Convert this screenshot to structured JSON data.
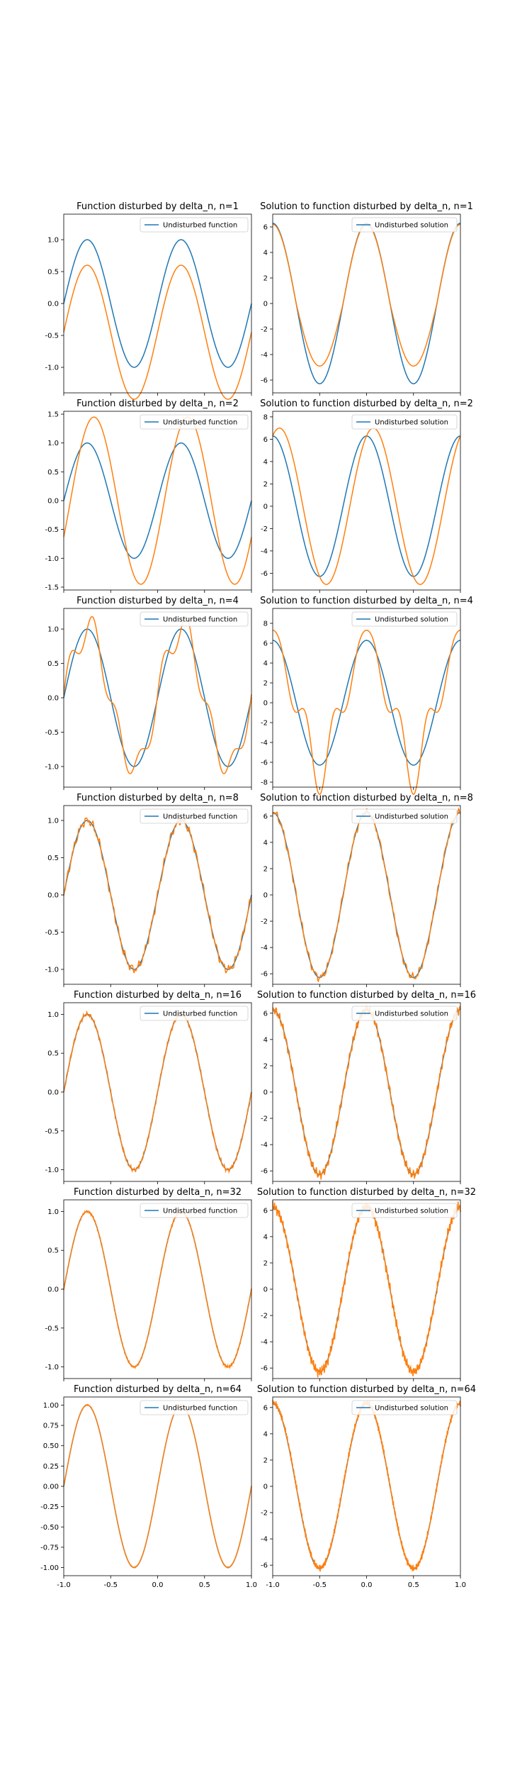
{
  "chart_data": [
    {
      "type": "line",
      "title": "Function disturbed by delta_n, n=1",
      "legend": [
        "Undisturbed function"
      ],
      "legend_loc": "upper-right",
      "xlim": [
        -1.0,
        1.0
      ],
      "ylim": [
        -1.4,
        1.4
      ],
      "yticks": [
        "1.0",
        "0.5",
        "0.0",
        "-0.5",
        "-1.0"
      ],
      "xticks": [],
      "curve": "f",
      "n": 1
    },
    {
      "type": "line",
      "title": "Solution to function disturbed by delta_n, n=1",
      "legend": [
        "Undisturbed solution"
      ],
      "legend_loc": "upper-right",
      "xlim": [
        -1.0,
        1.0
      ],
      "ylim": [
        -7.0,
        7.0
      ],
      "yticks": [
        "6",
        "4",
        "2",
        "0",
        "-2",
        "-4",
        "-6"
      ],
      "xticks": [],
      "curve": "s",
      "n": 1
    },
    {
      "type": "line",
      "title": "Function disturbed by delta_n, n=2",
      "legend": [
        "Undisturbed function"
      ],
      "legend_loc": "upper-right",
      "xlim": [
        -1.0,
        1.0
      ],
      "ylim": [
        -1.55,
        1.55
      ],
      "yticks": [
        "1.5",
        "1.0",
        "0.5",
        "0.0",
        "-0.5",
        "-1.0",
        "-1.5"
      ],
      "xticks": [],
      "curve": "f",
      "n": 2
    },
    {
      "type": "line",
      "title": "Solution to function disturbed by delta_n, n=2",
      "legend": [
        "Undisturbed solution"
      ],
      "legend_loc": "upper-right",
      "xlim": [
        -1.0,
        1.0
      ],
      "ylim": [
        -7.5,
        8.5
      ],
      "yticks": [
        "8",
        "6",
        "4",
        "2",
        "0",
        "-2",
        "-4",
        "-6"
      ],
      "xticks": [],
      "curve": "s",
      "n": 2
    },
    {
      "type": "line",
      "title": "Function disturbed by delta_n, n=4",
      "legend": [
        "Undisturbed function"
      ],
      "legend_loc": "upper-right",
      "xlim": [
        -1.0,
        1.0
      ],
      "ylim": [
        -1.3,
        1.3
      ],
      "yticks": [
        "1.0",
        "0.5",
        "0.0",
        "-0.5",
        "-1.0"
      ],
      "xticks": [],
      "curve": "f",
      "n": 4
    },
    {
      "type": "line",
      "title": "Solution to function disturbed by delta_n, n=4",
      "legend": [
        "Undisturbed solution"
      ],
      "legend_loc": "upper-right",
      "xlim": [
        -1.0,
        1.0
      ],
      "ylim": [
        -8.5,
        9.5
      ],
      "yticks": [
        "8",
        "6",
        "4",
        "2",
        "0",
        "-2",
        "-4",
        "-6",
        "-8"
      ],
      "xticks": [],
      "curve": "s",
      "n": 4
    },
    {
      "type": "line",
      "title": "Function disturbed by delta_n, n=8",
      "legend": [
        "Undisturbed function"
      ],
      "legend_loc": "upper-right",
      "xlim": [
        -1.0,
        1.0
      ],
      "ylim": [
        -1.2,
        1.2
      ],
      "yticks": [
        "1.0",
        "0.5",
        "0.0",
        "-0.5",
        "-1.0"
      ],
      "xticks": [],
      "curve": "f",
      "n": 8
    },
    {
      "type": "line",
      "title": "Solution to function disturbed by delta_n, n=8",
      "legend": [
        "Undisturbed solution"
      ],
      "legend_loc": "upper-right",
      "xlim": [
        -1.0,
        1.0
      ],
      "ylim": [
        -6.8,
        6.8
      ],
      "yticks": [
        "6",
        "4",
        "2",
        "0",
        "-2",
        "-4",
        "-6"
      ],
      "xticks": [],
      "curve": "s",
      "n": 8
    },
    {
      "type": "line",
      "title": "Function disturbed by delta_n, n=16",
      "legend": [
        "Undisturbed function"
      ],
      "legend_loc": "upper-right",
      "xlim": [
        -1.0,
        1.0
      ],
      "ylim": [
        -1.15,
        1.15
      ],
      "yticks": [
        "1.0",
        "0.5",
        "0.0",
        "-0.5",
        "-1.0"
      ],
      "xticks": [],
      "curve": "f",
      "n": 16
    },
    {
      "type": "line",
      "title": "Solution to function disturbed by delta_n, n=16",
      "legend": [
        "Undisturbed solution"
      ],
      "legend_loc": "upper-right",
      "xlim": [
        -1.0,
        1.0
      ],
      "ylim": [
        -6.8,
        6.8
      ],
      "yticks": [
        "6",
        "4",
        "2",
        "0",
        "-2",
        "-4",
        "-6"
      ],
      "xticks": [],
      "curve": "s",
      "n": 16
    },
    {
      "type": "line",
      "title": "Function disturbed by delta_n, n=32",
      "legend": [
        "Undisturbed function"
      ],
      "legend_loc": "upper-right",
      "xlim": [
        -1.0,
        1.0
      ],
      "ylim": [
        -1.15,
        1.15
      ],
      "yticks": [
        "1.0",
        "0.5",
        "0.0",
        "-0.5",
        "-1.0"
      ],
      "xticks": [],
      "curve": "f",
      "n": 32
    },
    {
      "type": "line",
      "title": "Solution to function disturbed by delta_n, n=32",
      "legend": [
        "Undisturbed solution"
      ],
      "legend_loc": "upper-right",
      "xlim": [
        -1.0,
        1.0
      ],
      "ylim": [
        -6.8,
        6.8
      ],
      "yticks": [
        "6",
        "4",
        "2",
        "0",
        "-2",
        "-4",
        "-6"
      ],
      "xticks": [],
      "curve": "s",
      "n": 32
    },
    {
      "type": "line",
      "title": "Function disturbed by delta_n, n=64",
      "legend": [
        "Undisturbed function"
      ],
      "legend_loc": "upper-right",
      "xlim": [
        -1.0,
        1.0
      ],
      "ylim": [
        -1.1,
        1.1
      ],
      "yticks": [
        "1.00",
        "0.75",
        "0.50",
        "0.25",
        "0.00",
        "-0.25",
        "-0.50",
        "-0.75",
        "-1.00"
      ],
      "xticks": [
        "-1.0",
        "-0.5",
        "0.0",
        "0.5",
        "1.0"
      ],
      "curve": "f",
      "n": 64
    },
    {
      "type": "line",
      "title": "Solution to function disturbed by delta_n, n=64",
      "legend": [
        "Undisturbed solution"
      ],
      "legend_loc": "upper-right",
      "xlim": [
        -1.0,
        1.0
      ],
      "ylim": [
        -6.8,
        6.8
      ],
      "yticks": [
        "6",
        "4",
        "2",
        "0",
        "-2",
        "-4",
        "-6"
      ],
      "xticks": [
        "-1.0",
        "-0.5",
        "0.0",
        "0.5",
        "1.0"
      ],
      "curve": "s",
      "n": 64
    }
  ],
  "colors": {
    "undisturbed": "#1f77b4",
    "disturbed": "#ff7f0e",
    "axes": "#000000"
  }
}
